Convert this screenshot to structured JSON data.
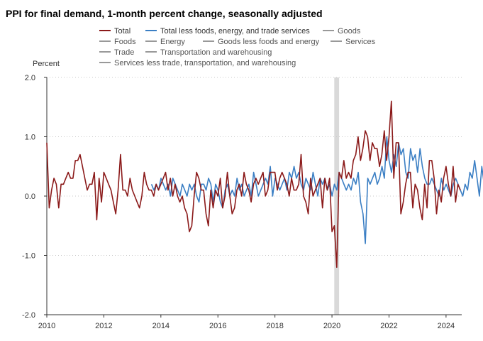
{
  "chart_data": {
    "type": "line",
    "title": "PPI for final demand, 1-month percent change, seasonally adjusted",
    "ylabel": "Percent",
    "xlabel": "",
    "ylim": [
      -2.0,
      2.0
    ],
    "y_ticks": [
      {
        "value": 2.0,
        "label": "2.0"
      },
      {
        "value": 1.0,
        "label": "1.0"
      },
      {
        "value": 0.0,
        "label": "0.0"
      },
      {
        "value": -1.0,
        "label": "-1.0"
      },
      {
        "value": -2.0,
        "label": "-2.0"
      }
    ],
    "x_start": 2010,
    "x_end": 2024.55,
    "x_ticks": [
      {
        "value": 2010,
        "label": "2010"
      },
      {
        "value": 2012,
        "label": "2012"
      },
      {
        "value": 2014,
        "label": "2014"
      },
      {
        "value": 2016,
        "label": "2016"
      },
      {
        "value": 2018,
        "label": "2018"
      },
      {
        "value": 2020,
        "label": "2020"
      },
      {
        "value": 2022,
        "label": "2022"
      },
      {
        "value": 2024,
        "label": "2024"
      }
    ],
    "grid": "horizontal-dotted",
    "recession": {
      "start": 2020.08,
      "end": 2020.25,
      "color": "#d9d9d9"
    },
    "legend": {
      "placement": "top",
      "entries": [
        {
          "name": "Total",
          "color": "#8b1a1a",
          "active": true
        },
        {
          "name": "Total less foods, energy, and trade services",
          "color": "#3b7fc4",
          "active": true
        },
        {
          "name": "Goods",
          "color": "#999999",
          "active": false
        },
        {
          "name": "Foods",
          "color": "#999999",
          "active": false
        },
        {
          "name": "Energy",
          "color": "#999999",
          "active": false
        },
        {
          "name": "Goods less foods and energy",
          "color": "#999999",
          "active": false
        },
        {
          "name": "Services",
          "color": "#999999",
          "active": false
        },
        {
          "name": "Trade",
          "color": "#999999",
          "active": false
        },
        {
          "name": "Transportation and warehousing",
          "color": "#999999",
          "active": false
        },
        {
          "name": "Services less trade, transportation, and warehousing",
          "color": "#999999",
          "active": false
        }
      ]
    },
    "series": [
      {
        "name": "Total",
        "color": "#8b1a1a",
        "start": 2010.0,
        "step": 0.0833333,
        "values": [
          0.9,
          -0.2,
          0.1,
          0.3,
          0.2,
          -0.2,
          0.2,
          0.2,
          0.3,
          0.4,
          0.3,
          0.3,
          0.6,
          0.6,
          0.7,
          0.5,
          0.3,
          0.1,
          0.2,
          0.2,
          0.4,
          -0.4,
          0.3,
          -0.1,
          0.4,
          0.3,
          0.2,
          0.1,
          -0.1,
          -0.3,
          0.1,
          0.7,
          0.1,
          0.1,
          0.0,
          0.3,
          0.1,
          0.0,
          -0.1,
          -0.2,
          0.0,
          0.4,
          0.2,
          0.1,
          0.1,
          0.0,
          0.2,
          0.1,
          0.2,
          0.3,
          0.4,
          0.1,
          0.3,
          0.0,
          0.2,
          0.0,
          -0.1,
          0.0,
          -0.2,
          -0.3,
          -0.6,
          -0.5,
          0.0,
          0.4,
          0.3,
          0.1,
          0.1,
          -0.3,
          -0.5,
          0.1,
          -0.2,
          0.1,
          0.0,
          0.3,
          -0.2,
          0.0,
          0.4,
          0.0,
          -0.3,
          -0.2,
          0.1,
          0.2,
          0.0,
          0.4,
          0.2,
          0.1,
          -0.1,
          0.2,
          0.3,
          0.2,
          0.3,
          0.4,
          0.0,
          0.1,
          0.4,
          0.4,
          0.4,
          0.1,
          0.3,
          0.4,
          0.3,
          0.2,
          0.0,
          0.3,
          0.1,
          0.1,
          0.2,
          0.7,
          0.0,
          -0.1,
          -0.3,
          0.3,
          0.0,
          0.1,
          0.2,
          0.3,
          -0.2,
          0.3,
          0.1,
          0.3,
          -0.6,
          -0.5,
          -1.2,
          0.4,
          0.3,
          0.6,
          0.3,
          0.4,
          0.3,
          0.6,
          0.7,
          1.0,
          0.6,
          0.8,
          1.1,
          1.0,
          0.6,
          0.9,
          0.8,
          0.8,
          0.5,
          0.7,
          1.1,
          0.6,
          1.0,
          1.6,
          0.3,
          0.9,
          0.9,
          -0.3,
          -0.1,
          0.2,
          0.4,
          0.4,
          -0.2,
          0.2,
          0.1,
          -0.2,
          -0.4,
          0.2,
          -0.2,
          0.6,
          0.6,
          0.3,
          -0.3,
          0.1,
          -0.1,
          0.3,
          0.5,
          0.2,
          0.0,
          0.5,
          -0.1,
          0.2,
          0.1
        ]
      },
      {
        "name": "Total less foods, energy, and trade services",
        "color": "#3b7fc4",
        "start": 2013.67,
        "step": 0.0833333,
        "values": [
          0.2,
          0.1,
          0.2,
          0.1,
          0.3,
          0.2,
          0.1,
          0.2,
          0.0,
          0.3,
          0.2,
          0.1,
          0.0,
          0.2,
          0.1,
          0.0,
          0.2,
          0.1,
          0.2,
          0.0,
          -0.1,
          0.2,
          0.2,
          0.1,
          0.3,
          0.2,
          -0.1,
          0.2,
          0.1,
          -0.1,
          -0.2,
          0.1,
          0.2,
          0.0,
          0.1,
          0.0,
          0.3,
          0.1,
          0.2,
          0.0,
          0.1,
          0.2,
          0.0,
          0.4,
          0.2,
          0.0,
          0.1,
          0.2,
          0.3,
          0.2,
          0.5,
          0.0,
          0.3,
          0.2,
          0.1,
          0.2,
          0.3,
          0.1,
          0.4,
          0.3,
          0.5,
          0.3,
          0.4,
          0.2,
          0.1,
          0.3,
          0.2,
          0.1,
          0.4,
          0.2,
          0.0,
          0.3,
          0.2,
          0.3,
          0.1,
          0.2,
          0.0,
          0.2,
          0.1,
          0.4,
          0.3,
          0.2,
          0.1,
          0.2,
          0.1,
          0.3,
          0.2,
          0.4,
          -0.1,
          -0.3,
          -0.8,
          0.3,
          0.2,
          0.3,
          0.4,
          0.2,
          0.3,
          0.5,
          0.3,
          1.0,
          0.6,
          0.4,
          0.7,
          0.5,
          0.9,
          0.7,
          0.8,
          0.4,
          0.3,
          0.8,
          0.6,
          0.7,
          0.4,
          0.8,
          0.5,
          0.3,
          0.2,
          0.2,
          0.3,
          0.2,
          0.1,
          0.0,
          0.3,
          0.1,
          0.2,
          0.1,
          0.0,
          0.2,
          0.3,
          0.2,
          0.1,
          0.0,
          0.2,
          0.1,
          0.4,
          0.3,
          0.6,
          0.3,
          0.0,
          0.5,
          0.2,
          0.2,
          0.1,
          0.3
        ]
      }
    ]
  }
}
